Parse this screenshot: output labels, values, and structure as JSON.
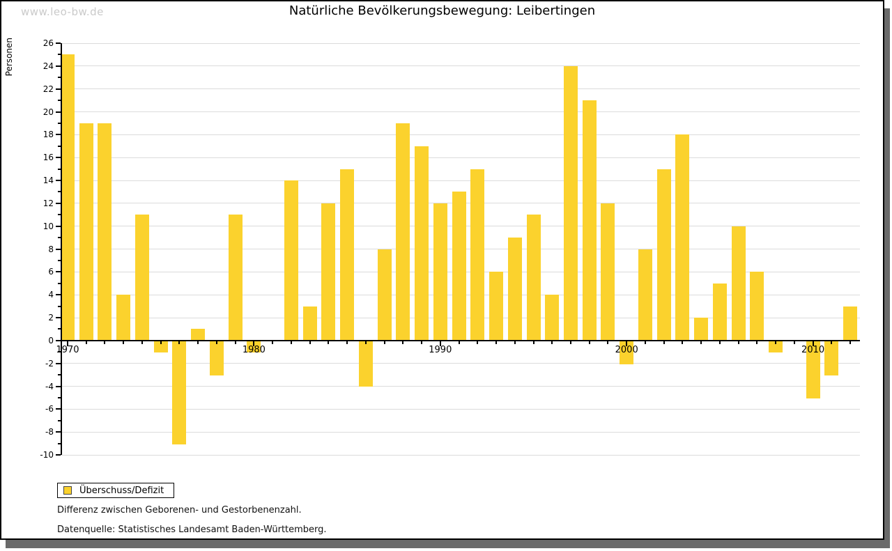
{
  "watermark": "www.leo-bw.de",
  "title": "Natürliche Bevölkerungsbewegung: Leibertingen",
  "legend": {
    "label": "Überschuss/Defizit"
  },
  "footnotes": {
    "line1": "Differenz zwischen Geborenen- und Gestorbenenzahl.",
    "line2": "Datenquelle: Statistisches Landesamt Baden-Württemberg."
  },
  "colors": {
    "bar": "#FBD22D",
    "grid": "#DBDBDB",
    "axis": "#000000",
    "watermark": "#CACACA",
    "shadow": "#6A6A6A"
  },
  "chart_data": {
    "type": "bar",
    "title": "Natürliche Bevölkerungsbewegung: Leibertingen",
    "xlabel": "",
    "ylabel": "Personen",
    "series_name": "Überschuss/Defizit",
    "x": [
      1970,
      1971,
      1972,
      1973,
      1974,
      1975,
      1976,
      1977,
      1978,
      1979,
      1980,
      1981,
      1982,
      1983,
      1984,
      1985,
      1986,
      1987,
      1988,
      1989,
      1990,
      1991,
      1992,
      1993,
      1994,
      1995,
      1996,
      1997,
      1998,
      1999,
      2000,
      2001,
      2002,
      2003,
      2004,
      2005,
      2006,
      2007,
      2008,
      2009,
      2010,
      2011,
      2012
    ],
    "values": [
      25,
      19,
      19,
      4,
      11,
      -1,
      -9,
      1,
      -3,
      11,
      -1,
      0,
      14,
      3,
      12,
      15,
      -4,
      8,
      19,
      17,
      12,
      13,
      15,
      6,
      9,
      11,
      4,
      24,
      21,
      12,
      -2,
      8,
      15,
      18,
      2,
      5,
      10,
      6,
      -1,
      0,
      -5,
      -3,
      3
    ],
    "ylim": [
      -10,
      26
    ],
    "y_tick_step": 2,
    "y_tick_labels": [
      "26",
      "24",
      "22",
      "20",
      "18",
      "16",
      "14",
      "12",
      "10",
      "8",
      "6",
      "4",
      "2",
      "0",
      "-2",
      "-4",
      "-6",
      "-8",
      "-10"
    ],
    "x_tick_labels": [
      "1970",
      "1980",
      "1990",
      "2000",
      "2010"
    ],
    "grid": true,
    "legend_position": "bottom-left"
  }
}
